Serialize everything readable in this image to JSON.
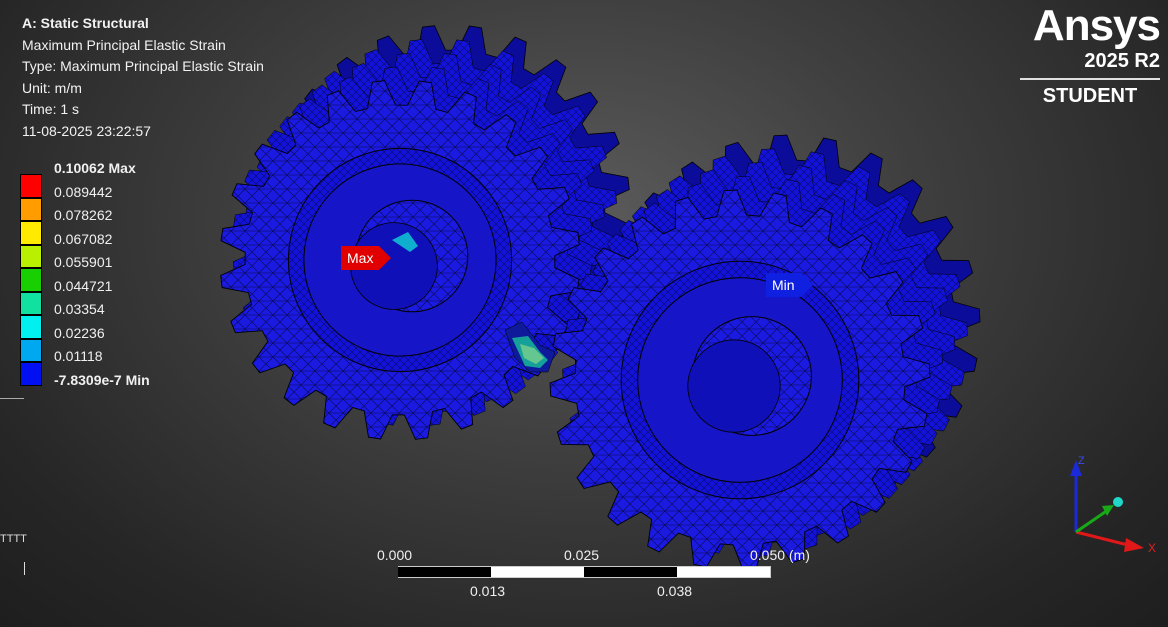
{
  "header": {
    "analysis": "A: Static Structural",
    "result_name": "Maximum Principal Elastic Strain",
    "type_line": "Type: Maximum Principal Elastic Strain",
    "unit_line": "Unit: m/m",
    "time_line": "Time: 1 s",
    "timestamp": "11-08-2025 23:22:57"
  },
  "legend": {
    "labels": [
      "0.10062 Max",
      "0.089442",
      "0.078262",
      "0.067082",
      "0.055901",
      "0.044721",
      "0.03354",
      "0.02236",
      "0.01118",
      "-7.8309e-7 Min"
    ],
    "colors": [
      "#ff0000",
      "#ff9c00",
      "#ffea00",
      "#b8f000",
      "#18d000",
      "#10e0a0",
      "#00f0f0",
      "#00a8f0",
      "#0010f0"
    ]
  },
  "brand": {
    "logo": "Ansys",
    "version": "2025 R2",
    "edition": "STUDENT"
  },
  "probes": {
    "max": "Max",
    "min": "Min"
  },
  "scale": {
    "top_labels": [
      "0.000",
      "0.025",
      "0.050 (m)"
    ],
    "bottom_labels": [
      "0.013",
      "0.038"
    ]
  },
  "triad": {
    "x": "X",
    "z": "Z"
  },
  "edge_marks": {
    "left_text": "TTTT"
  },
  "colors": {
    "mesh_fill": "#1414e6",
    "mesh_line": "#000000",
    "hotspot": "#14d0a0"
  }
}
